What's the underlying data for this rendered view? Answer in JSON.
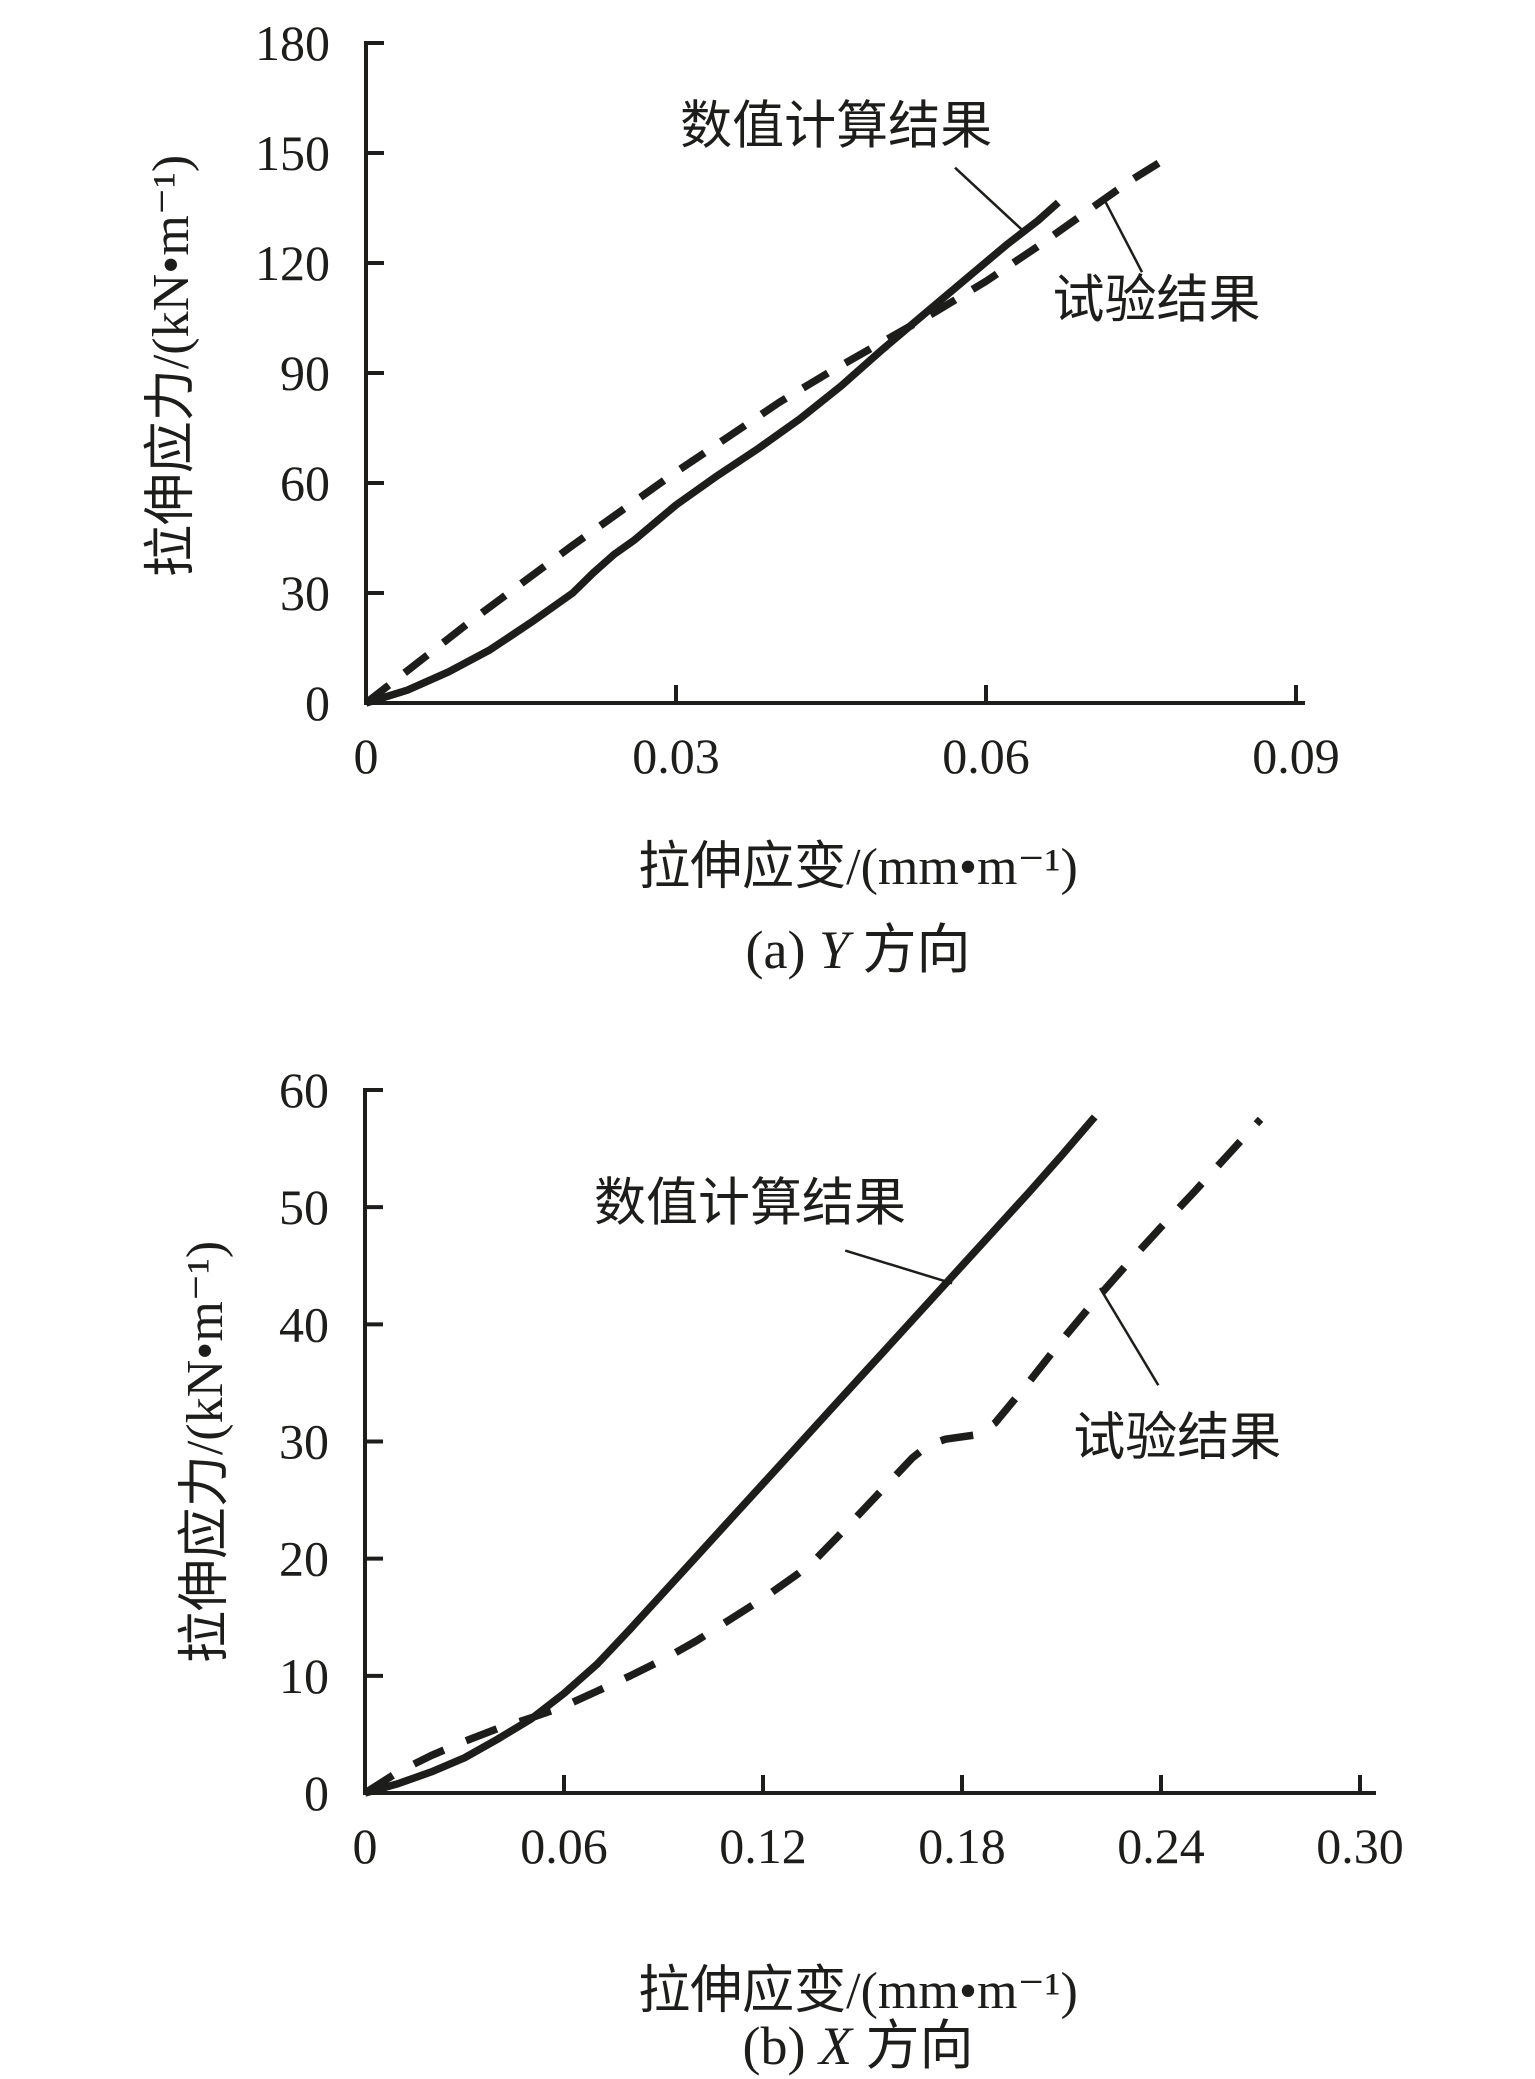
{
  "figure": {
    "ink": "#1d1d1b",
    "background": "#ffffff"
  },
  "chart_data": [
    {
      "id": "a",
      "type": "line",
      "caption": {
        "prefix": "(a) ",
        "variable": "Y",
        "suffix": " 方向"
      },
      "xlabel": "拉伸应变/(mm•m⁻¹)",
      "ylabel": "拉伸应力/(kN•m⁻¹)",
      "xlim": [
        0,
        0.09
      ],
      "ylim": [
        0,
        180
      ],
      "grid": false,
      "legend_position": "inline-annotations",
      "xticks": [
        {
          "v": 0,
          "label": "0"
        },
        {
          "v": 0.03,
          "label": "0.03"
        },
        {
          "v": 0.06,
          "label": "0.06"
        },
        {
          "v": 0.09,
          "label": "0.09"
        }
      ],
      "yticks": [
        {
          "v": 0,
          "label": "0"
        },
        {
          "v": 30,
          "label": "30"
        },
        {
          "v": 60,
          "label": "60"
        },
        {
          "v": 90,
          "label": "90"
        },
        {
          "v": 120,
          "label": "120"
        },
        {
          "v": 150,
          "label": "150"
        },
        {
          "v": 180,
          "label": "180"
        }
      ],
      "series": [
        {
          "name": "数值计算结果",
          "style": "solid",
          "points": [
            [
              0,
              0
            ],
            [
              0.004,
              3.5
            ],
            [
              0.008,
              8.5
            ],
            [
              0.012,
              14.5
            ],
            [
              0.016,
              22
            ],
            [
              0.02,
              30
            ],
            [
              0.022,
              35.5
            ],
            [
              0.024,
              40.5
            ],
            [
              0.026,
              44.5
            ],
            [
              0.03,
              54
            ],
            [
              0.034,
              62
            ],
            [
              0.038,
              69.5
            ],
            [
              0.042,
              77.5
            ],
            [
              0.046,
              86.5
            ],
            [
              0.05,
              96.5
            ],
            [
              0.054,
              106
            ],
            [
              0.058,
              115.5
            ],
            [
              0.062,
              125
            ],
            [
              0.065,
              131.5
            ],
            [
              0.067,
              136.5
            ]
          ]
        },
        {
          "name": "试验结果",
          "style": "dashed",
          "points": [
            [
              0,
              0
            ],
            [
              0.005,
              11
            ],
            [
              0.01,
              22
            ],
            [
              0.015,
              32.5
            ],
            [
              0.02,
              43
            ],
            [
              0.025,
              53
            ],
            [
              0.03,
              63
            ],
            [
              0.035,
              72.5
            ],
            [
              0.04,
              82
            ],
            [
              0.045,
              90.5
            ],
            [
              0.05,
              98.5
            ],
            [
              0.055,
              106.5
            ],
            [
              0.06,
              115
            ],
            [
              0.065,
              124.5
            ],
            [
              0.07,
              134.5
            ],
            [
              0.074,
              142.5
            ],
            [
              0.078,
              149.5
            ]
          ]
        }
      ],
      "annotations": [
        {
          "text": "数值计算结果",
          "target_series": "数值计算结果",
          "label_at": [
            0.0455,
            157.5
          ],
          "leader": [
            [
              0.057,
              146
            ],
            [
              0.0637,
              128.5
            ]
          ]
        },
        {
          "text": "试验结果",
          "target_series": "试验结果",
          "label_at": [
            0.0765,
            110
          ],
          "leader": [
            [
              0.0715,
              137
            ],
            [
              0.0751,
              117.5
            ]
          ]
        }
      ]
    },
    {
      "id": "b",
      "type": "line",
      "caption": {
        "prefix": "(b) ",
        "variable": "X",
        "suffix": " 方向"
      },
      "xlabel": "拉伸应变/(mm•m⁻¹)",
      "ylabel": "拉伸应力/(kN•m⁻¹)",
      "xlim": [
        0,
        0.3
      ],
      "ylim": [
        0,
        60
      ],
      "grid": false,
      "legend_position": "inline-annotations",
      "xticks": [
        {
          "v": 0,
          "label": "0"
        },
        {
          "v": 0.06,
          "label": "0.06"
        },
        {
          "v": 0.12,
          "label": "0.12"
        },
        {
          "v": 0.18,
          "label": "0.18"
        },
        {
          "v": 0.24,
          "label": "0.24"
        },
        {
          "v": 0.3,
          "label": "0.30"
        }
      ],
      "yticks": [
        {
          "v": 0,
          "label": "0"
        },
        {
          "v": 10,
          "label": "10"
        },
        {
          "v": 20,
          "label": "20"
        },
        {
          "v": 30,
          "label": "30"
        },
        {
          "v": 40,
          "label": "40"
        },
        {
          "v": 50,
          "label": "50"
        },
        {
          "v": 60,
          "label": "60"
        }
      ],
      "series": [
        {
          "name": "数值计算结果",
          "style": "solid",
          "points": [
            [
              0,
              0
            ],
            [
              0.01,
              0.8
            ],
            [
              0.02,
              1.8
            ],
            [
              0.03,
              3
            ],
            [
              0.04,
              4.6
            ],
            [
              0.05,
              6.3
            ],
            [
              0.06,
              8.5
            ],
            [
              0.07,
              11
            ],
            [
              0.08,
              14
            ],
            [
              0.09,
              17.1
            ],
            [
              0.1,
              20.2
            ],
            [
              0.11,
              23.3
            ],
            [
              0.12,
              26.4
            ],
            [
              0.13,
              29.5
            ],
            [
              0.14,
              32.6
            ],
            [
              0.15,
              35.7
            ],
            [
              0.16,
              38.8
            ],
            [
              0.17,
              41.9
            ],
            [
              0.18,
              45
            ],
            [
              0.19,
              48.1
            ],
            [
              0.2,
              51.2
            ],
            [
              0.21,
              54.4
            ],
            [
              0.22,
              57.7
            ]
          ]
        },
        {
          "name": "试验结果",
          "style": "dashed",
          "points": [
            [
              0,
              0
            ],
            [
              0.01,
              1.8
            ],
            [
              0.02,
              3.2
            ],
            [
              0.03,
              4.4
            ],
            [
              0.04,
              5.5
            ],
            [
              0.05,
              6.4
            ],
            [
              0.06,
              7.4
            ],
            [
              0.07,
              8.7
            ],
            [
              0.08,
              10
            ],
            [
              0.09,
              11.4
            ],
            [
              0.1,
              13
            ],
            [
              0.11,
              14.8
            ],
            [
              0.12,
              16.6
            ],
            [
              0.13,
              18.6
            ],
            [
              0.135,
              19.7
            ],
            [
              0.145,
              22.6
            ],
            [
              0.155,
              25.6
            ],
            [
              0.165,
              28.6
            ],
            [
              0.17,
              29.7
            ],
            [
              0.175,
              30.2
            ],
            [
              0.185,
              30.6
            ],
            [
              0.19,
              31.6
            ],
            [
              0.2,
              35
            ],
            [
              0.21,
              38.6
            ],
            [
              0.22,
              42
            ],
            [
              0.23,
              45.2
            ],
            [
              0.24,
              48.3
            ],
            [
              0.25,
              51.3
            ],
            [
              0.26,
              54.4
            ],
            [
              0.27,
              57.5
            ]
          ]
        }
      ],
      "annotations": [
        {
          "text": "数值计算结果",
          "target_series": "数值计算结果",
          "label_at": [
            0.1161,
            50.4
          ],
          "leader": [
            [
              0.1448,
              46.3
            ],
            [
              0.177,
              43.5
            ]
          ]
        },
        {
          "text": "试验结果",
          "target_series": "试验结果",
          "label_at": [
            0.2449,
            30.4
          ],
          "leader": [
            [
              0.2216,
              43.1
            ],
            [
              0.2392,
              34.8
            ]
          ]
        }
      ]
    }
  ]
}
